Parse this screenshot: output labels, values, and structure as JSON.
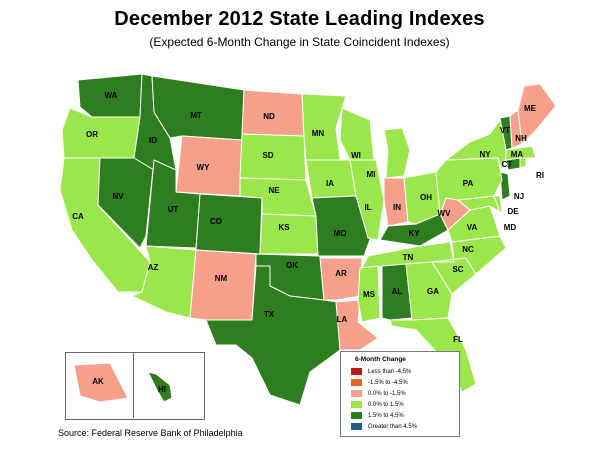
{
  "title": "December 2012 State Leading Indexes",
  "subtitle": "(Expected 6-Month Change in State Coincident Indexes)",
  "source": "Source: Federal Reserve Bank of Philadelphia",
  "legend": {
    "title": "6-Month Change",
    "items": [
      {
        "label": "Less than -4.5%",
        "color": "#b71c1c"
      },
      {
        "label": "-1.5% to -4.5%",
        "color": "#e0642b"
      },
      {
        "label": "0.0% to -1.5%",
        "color": "#f5a08a"
      },
      {
        "label": "0.0% to  1.5%",
        "color": "#9be64a"
      },
      {
        "label": "1.5% to  4.5%",
        "color": "#2e7d1f"
      },
      {
        "label": "Greater than 4.5%",
        "color": "#1f5f8b"
      }
    ]
  },
  "map_data": {
    "categories": {
      "salmon": "0.0% to -1.5%",
      "light": "0.0% to  1.5%",
      "dark": "1.5% to  4.5%"
    },
    "states": {
      "WA": "dark",
      "OR": "light",
      "CA": "light",
      "NV": "dark",
      "ID": "dark",
      "MT": "dark",
      "WY": "salmon",
      "UT": "dark",
      "CO": "dark",
      "AZ": "light",
      "NM": "salmon",
      "ND": "salmon",
      "SD": "light",
      "NE": "light",
      "KS": "light",
      "OK": "dark",
      "TX": "dark",
      "MN": "light",
      "IA": "light",
      "MO": "dark",
      "AR": "salmon",
      "LA": "salmon",
      "WI": "light",
      "IL": "light",
      "MI": "light",
      "IN": "salmon",
      "OH": "light",
      "KY": "dark",
      "TN": "light",
      "MS": "light",
      "AL": "dark",
      "GA": "light",
      "FL": "light",
      "SC": "light",
      "NC": "light",
      "VA": "light",
      "WV": "salmon",
      "MD": "light",
      "DE": "light",
      "NJ": "dark",
      "PA": "light",
      "NY": "light",
      "CT": "dark",
      "RI": "light",
      "MA": "light",
      "VT": "dark",
      "NH": "salmon",
      "ME": "salmon",
      "AK": "salmon",
      "HI": "dark"
    }
  },
  "colors": {
    "salmon": "#f5a08a",
    "light": "#9be64a",
    "dark": "#2e7d1f",
    "border": "#ffffff"
  }
}
